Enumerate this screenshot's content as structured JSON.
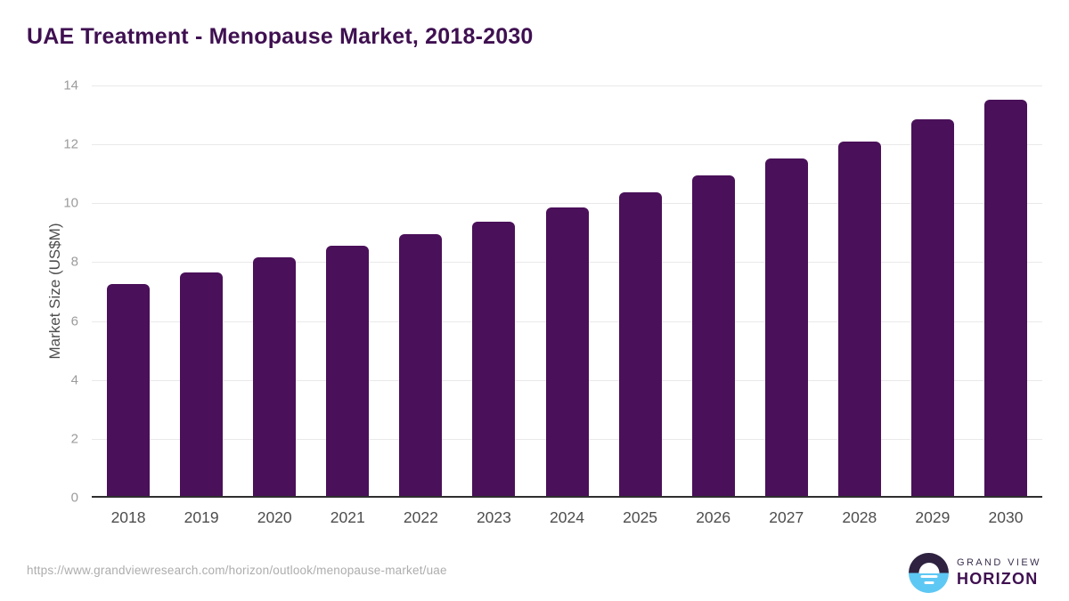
{
  "title": "UAE Treatment - Menopause Market, 2018-2030",
  "chart_data": {
    "type": "bar",
    "title": "UAE Treatment - Menopause Market, 2018-2030",
    "categories": [
      "2018",
      "2019",
      "2020",
      "2021",
      "2022",
      "2023",
      "2024",
      "2025",
      "2026",
      "2027",
      "2028",
      "2029",
      "2030"
    ],
    "values": [
      7.2,
      7.6,
      8.1,
      8.5,
      8.9,
      9.3,
      9.8,
      10.3,
      10.9,
      11.45,
      12.05,
      12.8,
      13.45
    ],
    "xlabel": "",
    "ylabel": "Market Size (US$M)",
    "ylim": [
      0,
      14
    ],
    "ytick_step": 2,
    "grid": true,
    "legend": false,
    "bar_color": "#4a1059"
  },
  "footer": {
    "url": "https://www.grandviewresearch.com/horizon/outlook/menopause-market/uae",
    "logo_line1": "GRAND VIEW",
    "logo_line2": "HORIZON"
  }
}
